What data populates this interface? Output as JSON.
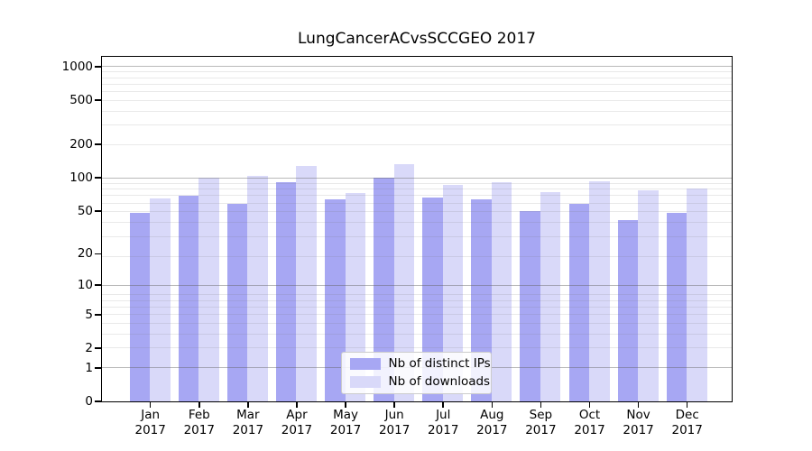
{
  "chart_data": {
    "type": "bar",
    "title": "LungCancerACvsSCCGEO 2017",
    "categories": [
      "Jan 2017",
      "Feb 2017",
      "Mar 2017",
      "Apr 2017",
      "May 2017",
      "Jun 2017",
      "Jul 2017",
      "Aug 2017",
      "Sep 2017",
      "Oct 2017",
      "Nov 2017",
      "Dec 2017"
    ],
    "series": [
      {
        "name": "Nb of distinct IPs",
        "color": "#a7a7f3",
        "values": [
          48,
          68,
          57,
          90,
          63,
          100,
          66,
          63,
          49,
          57,
          41,
          48
        ]
      },
      {
        "name": "Nb of downloads",
        "color": "#d9d9f9",
        "values": [
          65,
          100,
          103,
          126,
          72,
          131,
          85,
          90,
          73,
          92,
          76,
          80
        ]
      }
    ],
    "xlabel": "",
    "ylabel": "",
    "y_scale": "log10(value+1)",
    "ylim": [
      0,
      1230
    ],
    "yticks": [
      0,
      1,
      2,
      5,
      10,
      20,
      50,
      100,
      200,
      500,
      1000
    ],
    "major_grid_values": [
      1,
      10,
      100,
      1000
    ],
    "grid": "on",
    "legend_position": "lower center",
    "background_color": "#ffffff"
  }
}
